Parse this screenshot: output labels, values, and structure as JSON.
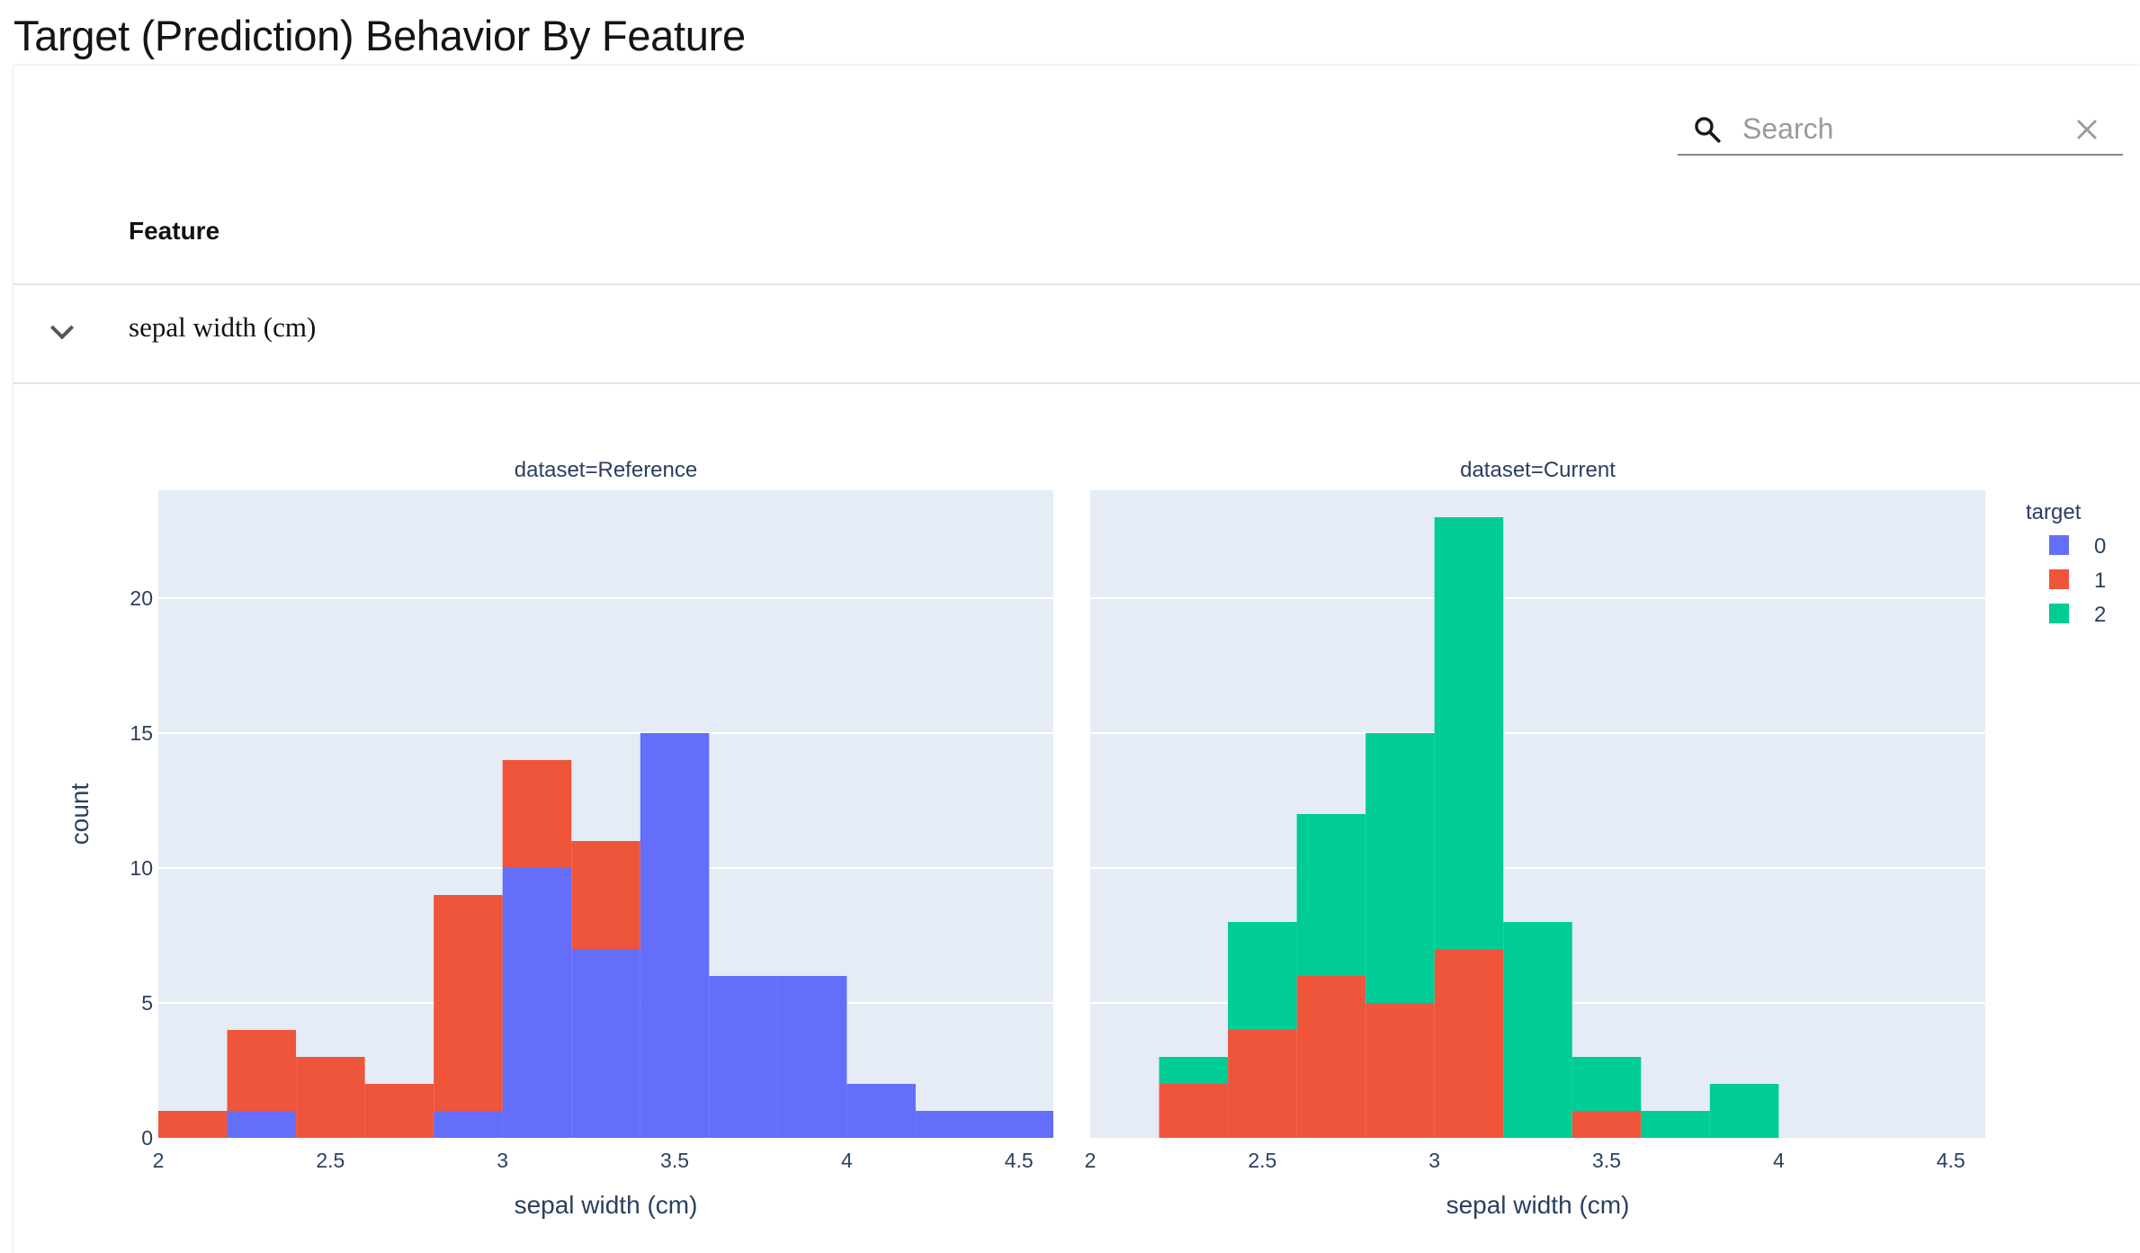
{
  "header": {
    "title": "Target (Prediction) Behavior By Feature"
  },
  "search": {
    "placeholder": "Search",
    "value": ""
  },
  "table": {
    "column_header": "Feature",
    "rows": [
      {
        "label": "sepal width (cm)",
        "expanded": true
      }
    ]
  },
  "icons": {
    "search": "search-icon",
    "clear": "close-icon",
    "expand": "chevron-down-icon"
  },
  "chart_data": {
    "type": "bar",
    "barmode": "stack",
    "xlabel": "sepal width (cm)",
    "ylabel": "count",
    "bin_width": 0.2,
    "bin_starts": [
      2.0,
      2.2,
      2.4,
      2.6,
      2.8,
      3.0,
      3.2,
      3.4,
      3.6,
      3.8,
      4.0,
      4.2,
      4.4
    ],
    "ylim": [
      0,
      24
    ],
    "yticks": [
      0,
      5,
      10,
      15,
      20
    ],
    "xticks": [
      2,
      2.5,
      3,
      3.5,
      4,
      4.5
    ],
    "xlim": [
      2.0,
      4.6
    ],
    "grid": true,
    "legend": {
      "title": "target",
      "position": "right",
      "entries": [
        {
          "name": "0",
          "color": "#636efa"
        },
        {
          "name": "1",
          "color": "#ef553b"
        },
        {
          "name": "2",
          "color": "#00cc96"
        }
      ]
    },
    "facets": [
      {
        "title": "dataset=Reference",
        "series": [
          {
            "name": "0",
            "color": "#636efa",
            "values": [
              0,
              1,
              0,
              0,
              1,
              10,
              7,
              15,
              6,
              6,
              2,
              1,
              1
            ]
          },
          {
            "name": "1",
            "color": "#ef553b",
            "values": [
              1,
              3,
              3,
              2,
              8,
              4,
              4,
              0,
              0,
              0,
              0,
              0,
              0
            ]
          }
        ]
      },
      {
        "title": "dataset=Current",
        "series": [
          {
            "name": "1",
            "color": "#ef553b",
            "values": [
              0,
              2,
              4,
              6,
              5,
              7,
              0,
              1,
              0,
              0,
              0,
              0,
              0
            ]
          },
          {
            "name": "2",
            "color": "#00cc96",
            "values": [
              0,
              1,
              4,
              6,
              10,
              16,
              8,
              2,
              1,
              2,
              0,
              0,
              0
            ]
          }
        ]
      }
    ]
  }
}
